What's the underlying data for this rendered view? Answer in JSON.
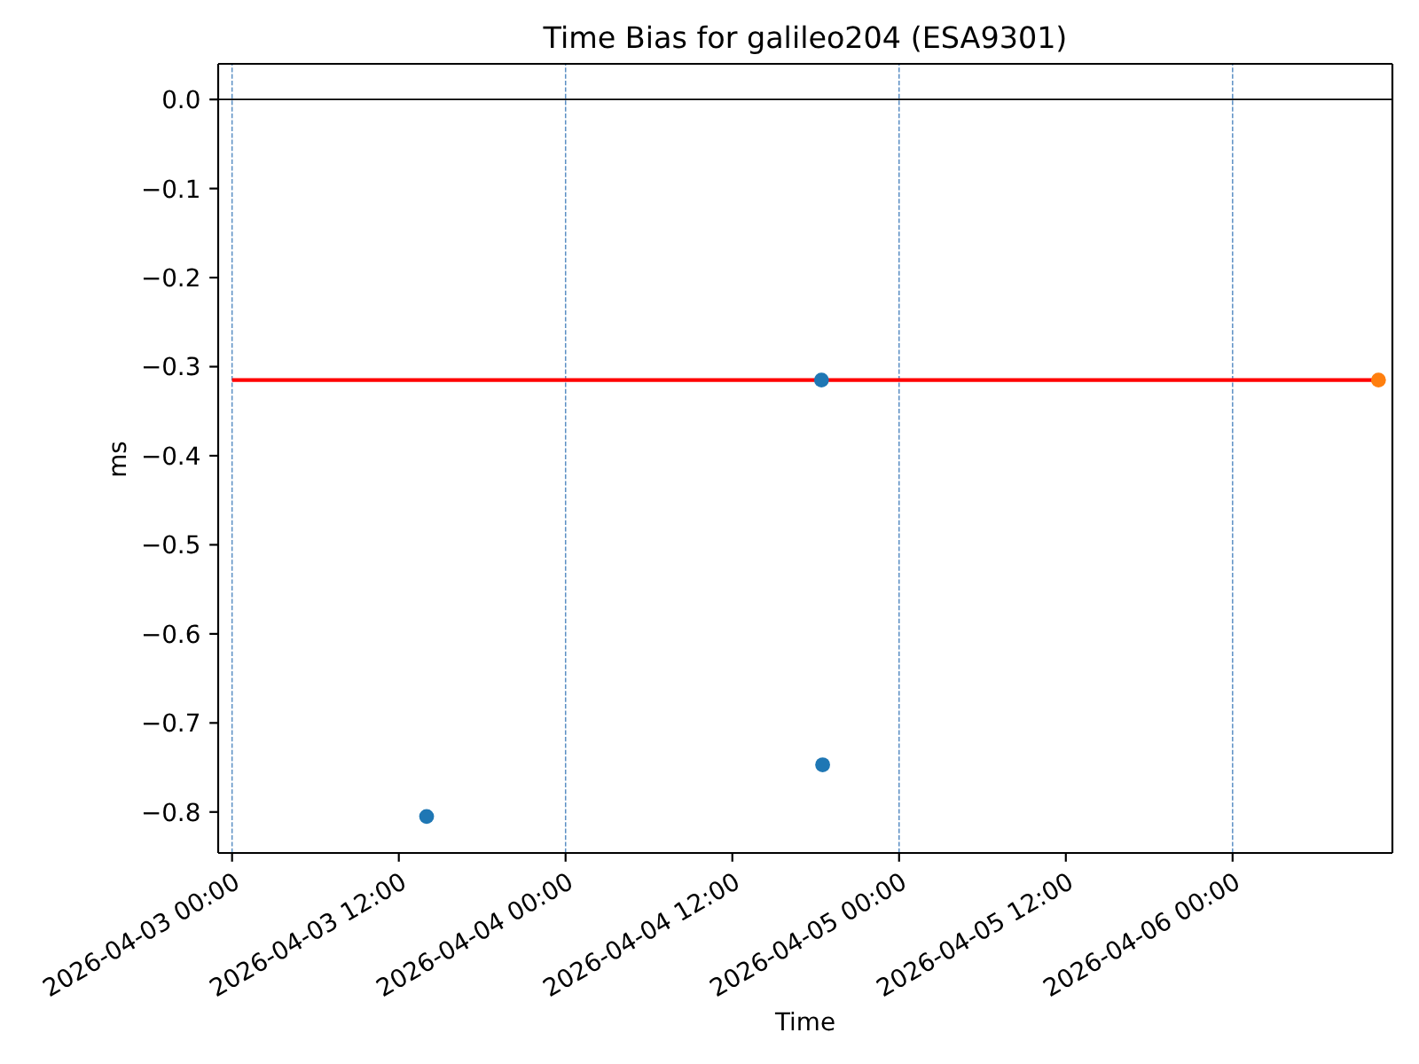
{
  "chart_data": {
    "type": "scatter",
    "title": "Time Bias for galileo204 (ESA9301)",
    "xlabel": "Time",
    "ylabel": "ms",
    "series": [
      {
        "type": "line",
        "color": "#ff0000",
        "marker": "none",
        "x": [
          "2026-04-03T00:00",
          "2026-04-06T10:30"
        ],
        "values": [
          -0.315,
          -0.315
        ]
      },
      {
        "color": "#1f77b4",
        "x": [
          "2026-04-03T14:00",
          "2026-04-04T18:25",
          "2026-04-04T18:30"
        ],
        "values": [
          -0.805,
          -0.315,
          -0.747
        ]
      },
      {
        "color": "#ff7f0e",
        "x": [
          "2026-04-06T10:30"
        ],
        "values": [
          -0.315
        ]
      }
    ],
    "xlim": [
      "2026-04-02T23:00",
      "2026-04-06T11:30"
    ],
    "xticks": [
      {
        "value": "2026-04-03T00:00",
        "label": "2026-04-03 00:00"
      },
      {
        "value": "2026-04-03T12:00",
        "label": "2026-04-03 12:00"
      },
      {
        "value": "2026-04-04T00:00",
        "label": "2026-04-04 00:00"
      },
      {
        "value": "2026-04-04T12:00",
        "label": "2026-04-04 12:00"
      },
      {
        "value": "2026-04-05T00:00",
        "label": "2026-04-05 00:00"
      },
      {
        "value": "2026-04-05T12:00",
        "label": "2026-04-05 12:00"
      },
      {
        "value": "2026-04-06T00:00",
        "label": "2026-04-06 00:00"
      }
    ],
    "ylim": [
      -0.846,
      0.04
    ],
    "yticks": [
      {
        "value": -0.8,
        "label": "−0.8"
      },
      {
        "value": -0.7,
        "label": "−0.7"
      },
      {
        "value": -0.6,
        "label": "−0.6"
      },
      {
        "value": -0.5,
        "label": "−0.5"
      },
      {
        "value": -0.4,
        "label": "−0.4"
      },
      {
        "value": -0.3,
        "label": "−0.3"
      },
      {
        "value": -0.2,
        "label": "−0.2"
      },
      {
        "value": -0.1,
        "label": "−0.1"
      },
      {
        "value": 0,
        "label": "0.0"
      }
    ],
    "ref_lines": [
      {
        "axis": "y",
        "value": 0,
        "color": "#000000",
        "line_style": "solid"
      },
      {
        "axis": "x",
        "value": "2026-04-03T00:00",
        "color": "#5b8fc4",
        "line_style": "dashed"
      },
      {
        "axis": "x",
        "value": "2026-04-04T00:00",
        "color": "#5b8fc4",
        "line_style": "dashed"
      },
      {
        "axis": "x",
        "value": "2026-04-05T00:00",
        "color": "#5b8fc4",
        "line_style": "dashed"
      },
      {
        "axis": "x",
        "value": "2026-04-06T00:00",
        "color": "#5b8fc4",
        "line_style": "dashed"
      }
    ],
    "marker": "circle"
  }
}
